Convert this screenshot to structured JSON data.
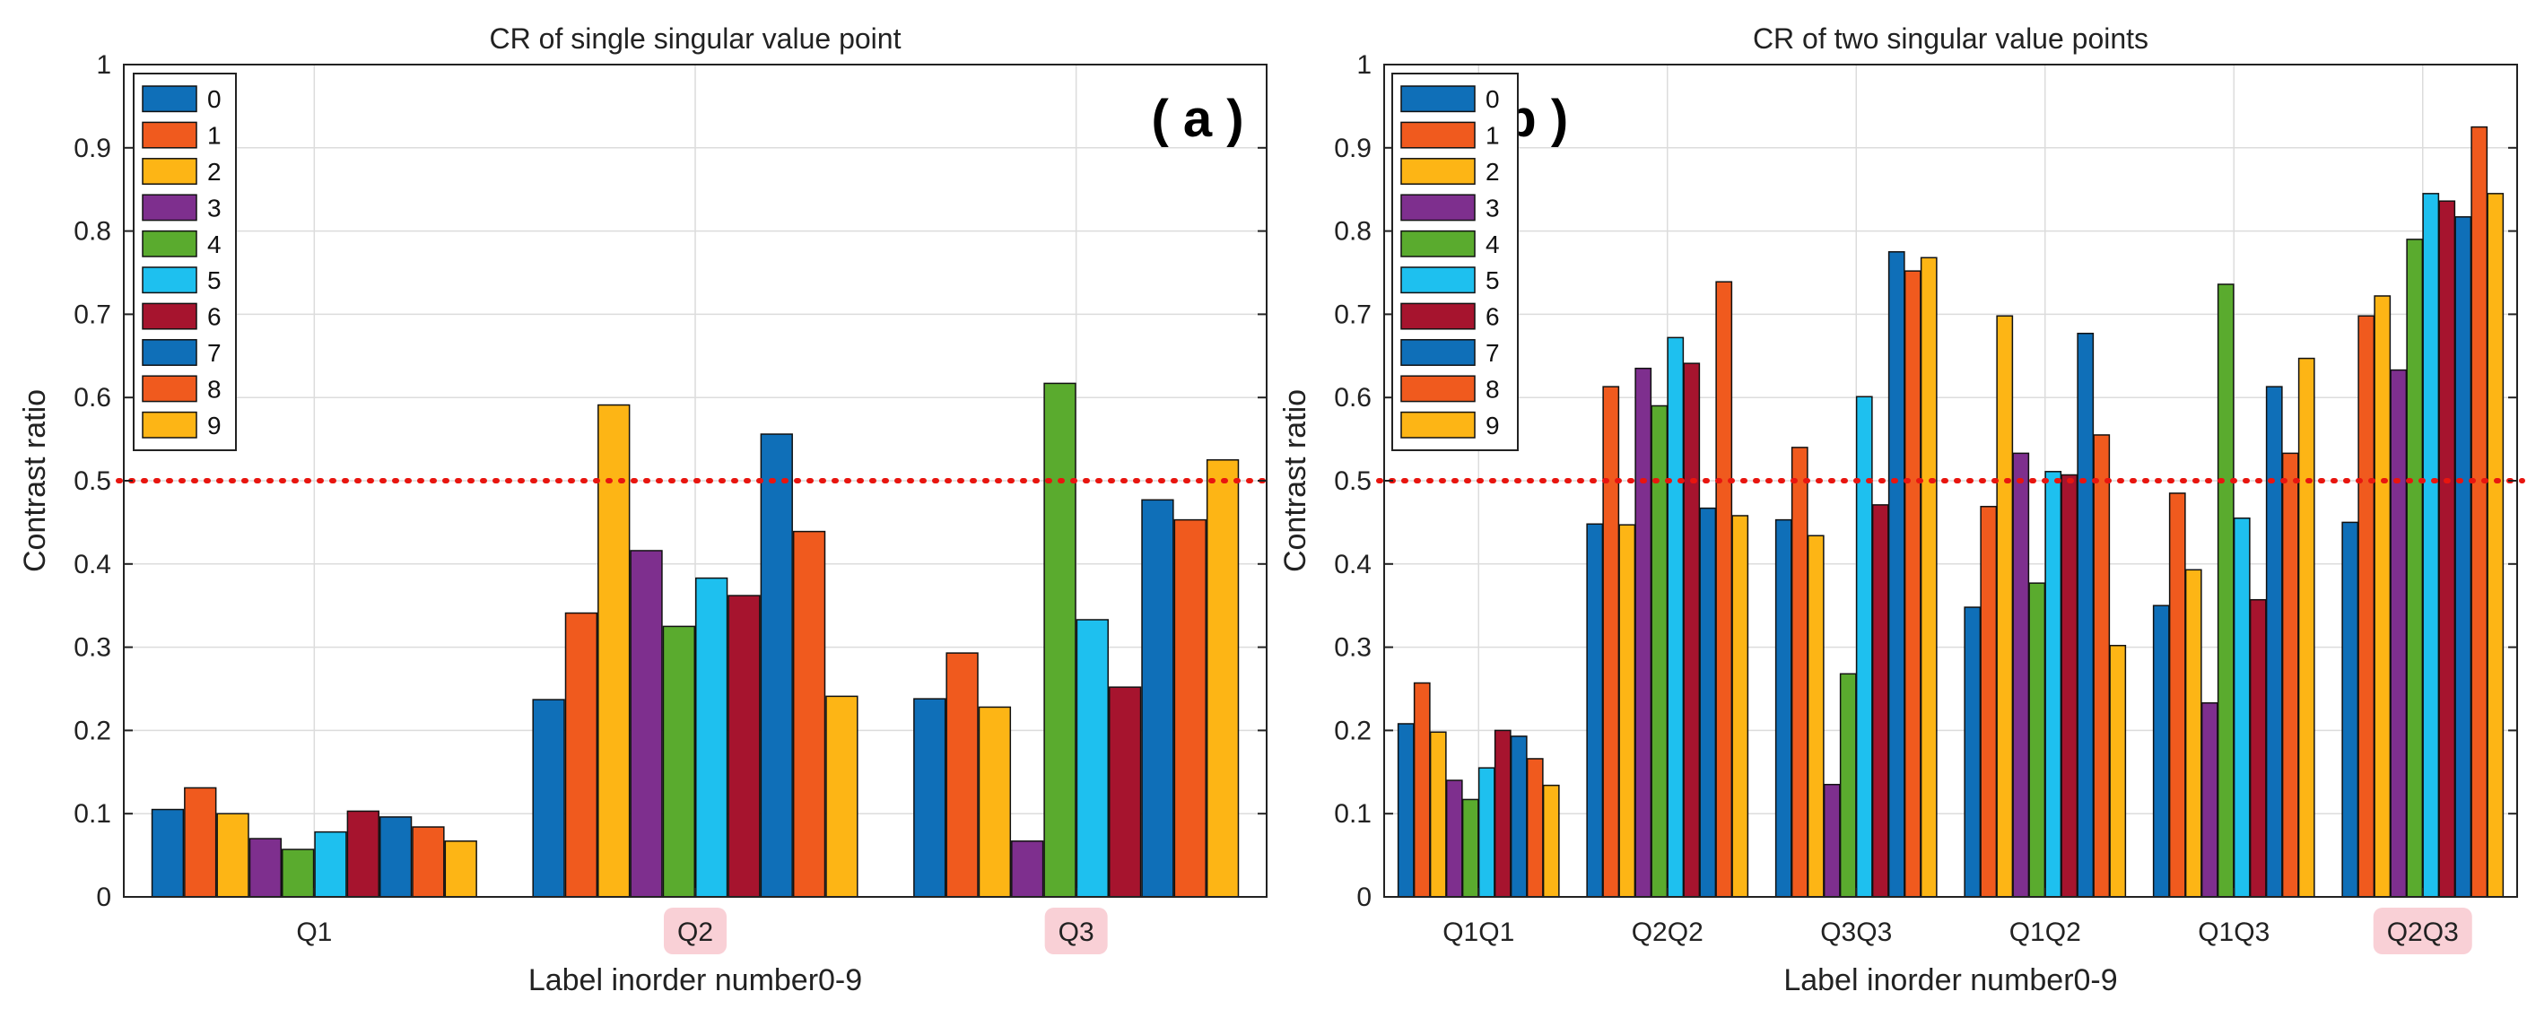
{
  "colors": [
    "#0f6fb8",
    "#f05a1e",
    "#fdb515",
    "#7e2f8e",
    "#5aab2e",
    "#1ec0ef",
    "#a6142e",
    "#0f6fb8",
    "#f05a1e",
    "#fdb515"
  ],
  "threshold_color": "#e8150f",
  "highlight_color": "#f9d0d6",
  "chart_data": [
    {
      "type": "bar",
      "panel_label": "( a )",
      "title": "CR of single singular value point",
      "xlabel": "Label inorder number0-9",
      "ylabel": "Contrast ratio",
      "ylim": [
        0,
        1
      ],
      "yticks": [
        "0",
        "0.1",
        "0.2",
        "0.3",
        "0.4",
        "0.5",
        "0.6",
        "0.7",
        "0.8",
        "0.9",
        "1"
      ],
      "grid": true,
      "legend_position": "top-left",
      "threshold": 0.5,
      "categories": [
        "Q1",
        "Q2",
        "Q3"
      ],
      "highlighted_categories": [
        "Q2",
        "Q3"
      ],
      "series": [
        {
          "name": "0",
          "values": [
            0.105,
            0.237,
            0.238
          ]
        },
        {
          "name": "1",
          "values": [
            0.131,
            0.341,
            0.293
          ]
        },
        {
          "name": "2",
          "values": [
            0.1,
            0.591,
            0.228
          ]
        },
        {
          "name": "3",
          "values": [
            0.07,
            0.416,
            0.067
          ]
        },
        {
          "name": "4",
          "values": [
            0.057,
            0.325,
            0.617
          ]
        },
        {
          "name": "5",
          "values": [
            0.078,
            0.383,
            0.333
          ]
        },
        {
          "name": "6",
          "values": [
            0.103,
            0.362,
            0.252
          ]
        },
        {
          "name": "7",
          "values": [
            0.096,
            0.556,
            0.477
          ]
        },
        {
          "name": "8",
          "values": [
            0.084,
            0.439,
            0.453
          ]
        },
        {
          "name": "9",
          "values": [
            0.067,
            0.241,
            0.525
          ]
        }
      ]
    },
    {
      "type": "bar",
      "panel_label": "( b )",
      "title": "CR of two singular value points",
      "xlabel": "Label inorder number0-9",
      "ylabel": "Contrast ratio",
      "ylim": [
        0,
        1
      ],
      "yticks": [
        "0",
        "0.1",
        "0.2",
        "0.3",
        "0.4",
        "0.5",
        "0.6",
        "0.7",
        "0.8",
        "0.9",
        "1"
      ],
      "grid": true,
      "legend_position": "top-left",
      "threshold": 0.5,
      "categories": [
        "Q1Q1",
        "Q2Q2",
        "Q3Q3",
        "Q1Q2",
        "Q1Q3",
        "Q2Q3"
      ],
      "highlighted_categories": [
        "Q2Q3"
      ],
      "series": [
        {
          "name": "0",
          "values": [
            0.208,
            0.448,
            0.453,
            0.348,
            0.35,
            0.45
          ]
        },
        {
          "name": "1",
          "values": [
            0.257,
            0.613,
            0.54,
            0.469,
            0.485,
            0.698
          ]
        },
        {
          "name": "2",
          "values": [
            0.198,
            0.447,
            0.434,
            0.698,
            0.393,
            0.722
          ]
        },
        {
          "name": "3",
          "values": [
            0.14,
            0.635,
            0.135,
            0.533,
            0.233,
            0.633
          ]
        },
        {
          "name": "4",
          "values": [
            0.117,
            0.59,
            0.268,
            0.377,
            0.736,
            0.79
          ]
        },
        {
          "name": "5",
          "values": [
            0.155,
            0.672,
            0.601,
            0.511,
            0.455,
            0.845
          ]
        },
        {
          "name": "6",
          "values": [
            0.2,
            0.641,
            0.471,
            0.507,
            0.357,
            0.836
          ]
        },
        {
          "name": "7",
          "values": [
            0.193,
            0.467,
            0.775,
            0.677,
            0.613,
            0.817
          ]
        },
        {
          "name": "8",
          "values": [
            0.166,
            0.739,
            0.752,
            0.555,
            0.533,
            0.925
          ]
        },
        {
          "name": "9",
          "values": [
            0.134,
            0.458,
            0.768,
            0.302,
            0.647,
            0.845
          ]
        }
      ]
    }
  ]
}
